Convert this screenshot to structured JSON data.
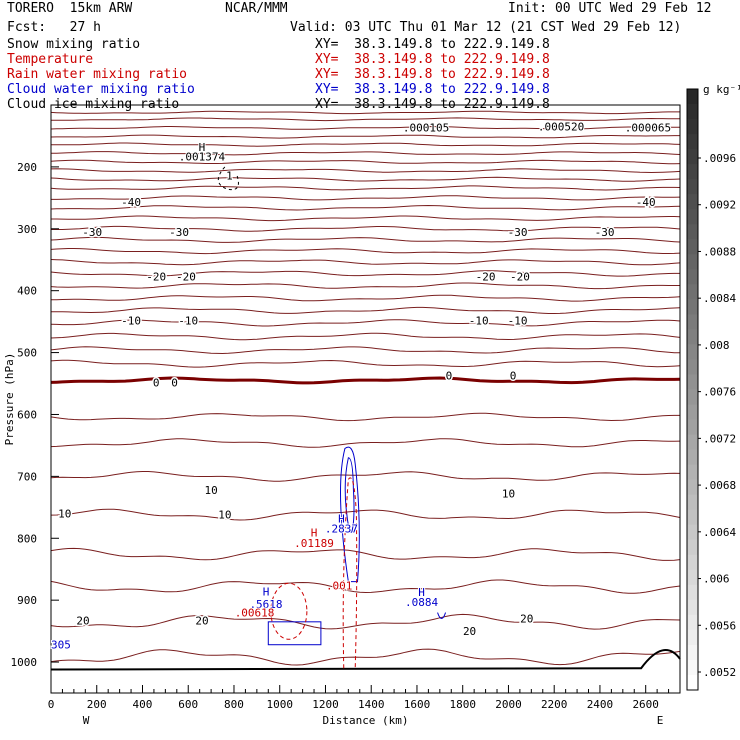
{
  "header": {
    "model": "TORERO  15km ARW",
    "org": "NCAR/MMM",
    "init": "Init: 00 UTC Wed 29 Feb 12",
    "fcst": "Fcst:   27 h",
    "valid": "Valid: 03 UTC Thu 01 Mar 12 (21 CST Wed 29 Feb 12)"
  },
  "legend": [
    {
      "name": "Snow mixing ratio",
      "xy": "XY=  38.3.149.8 to 222.9.149.8",
      "color": "#000000"
    },
    {
      "name": "Temperature",
      "xy": "XY=  38.3.149.8 to 222.9.149.8",
      "color": "#cc0000"
    },
    {
      "name": "Rain water mixing ratio",
      "xy": "XY=  38.3.149.8 to 222.9.149.8",
      "color": "#cc0000"
    },
    {
      "name": "Cloud water mixing ratio",
      "xy": "XY=  38.3.149.8 to 222.9.149.8",
      "color": "#0000cc"
    },
    {
      "name": "Cloud ice mixing ratio",
      "xy": "XY=  38.3.149.8 to 222.9.149.8",
      "color": "#000000"
    }
  ],
  "chart_data": {
    "type": "contour",
    "xlabel": "Distance (km)",
    "ylabel": "Pressure (hPa)",
    "xlim": [
      0,
      2750
    ],
    "ylim": [
      1050,
      100
    ],
    "x_ticks": [
      0,
      200,
      400,
      600,
      800,
      1000,
      1200,
      1400,
      1600,
      1800,
      2000,
      2200,
      2400,
      2600
    ],
    "y_ticks": [
      200,
      300,
      400,
      500,
      600,
      700,
      800,
      900,
      1000
    ],
    "y_tick_labels": [
      "200",
      "300",
      "400",
      "500",
      "600",
      "700",
      "800",
      "900",
      "1000"
    ],
    "x_end_labels": {
      "left": "W",
      "right": "E"
    },
    "colorbar": {
      "unit": "g kg⁻¹",
      "tick_labels": [
        ".0096",
        ".0092",
        ".0088",
        ".0084",
        ".008",
        ".0076",
        ".0072",
        ".0068",
        ".0064",
        ".006",
        ".0056",
        ".0052"
      ]
    },
    "temperature_labels": [
      {
        "text": "-40",
        "x": 350,
        "p": 257
      },
      {
        "text": "-40",
        "x": 2600,
        "p": 257
      },
      {
        "text": "-30",
        "x": 180,
        "p": 305
      },
      {
        "text": "-30",
        "x": 560,
        "p": 305
      },
      {
        "text": "-30",
        "x": 2040,
        "p": 305
      },
      {
        "text": "-30",
        "x": 2420,
        "p": 305
      },
      {
        "text": "-20",
        "x": 460,
        "p": 377
      },
      {
        "text": "-20",
        "x": 590,
        "p": 377
      },
      {
        "text": "-20",
        "x": 1900,
        "p": 377
      },
      {
        "text": "-20",
        "x": 2050,
        "p": 377
      },
      {
        "text": "-10",
        "x": 350,
        "p": 448
      },
      {
        "text": "-10",
        "x": 600,
        "p": 448
      },
      {
        "text": "-10",
        "x": 1870,
        "p": 448
      },
      {
        "text": "-10",
        "x": 2040,
        "p": 448
      },
      {
        "text": "0",
        "x": 460,
        "p": 548
      },
      {
        "text": "0",
        "x": 540,
        "p": 548
      },
      {
        "text": "0",
        "x": 1740,
        "p": 537
      },
      {
        "text": "0",
        "x": 2020,
        "p": 537
      },
      {
        "text": "10",
        "x": 700,
        "p": 722
      },
      {
        "text": "10",
        "x": 2000,
        "p": 728
      },
      {
        "text": "10",
        "x": 60,
        "p": 760
      },
      {
        "text": "10",
        "x": 760,
        "p": 762
      },
      {
        "text": "20",
        "x": 140,
        "p": 933
      },
      {
        "text": "20",
        "x": 660,
        "p": 933
      },
      {
        "text": "20",
        "x": 1830,
        "p": 950
      },
      {
        "text": "20",
        "x": 2080,
        "p": 930
      }
    ],
    "extrema_labels": [
      {
        "text": "H",
        "x": 660,
        "p": 168,
        "color": "#000000"
      },
      {
        "text": ".001374",
        "x": 660,
        "p": 183,
        "color": "#000000"
      },
      {
        "text": "1",
        "x": 780,
        "p": 214,
        "color": "#000000"
      },
      {
        "text": ".000105",
        "x": 1640,
        "p": 136,
        "color": "#000000"
      },
      {
        "text": ".000520",
        "x": 2230,
        "p": 135,
        "color": "#000000"
      },
      {
        "text": ".000065",
        "x": 2610,
        "p": 136,
        "color": "#000000"
      },
      {
        "text": "H",
        "x": 1270,
        "p": 768,
        "color": "#0000cc"
      },
      {
        "text": ".2837",
        "x": 1270,
        "p": 784,
        "color": "#0000cc"
      },
      {
        "text": "H",
        "x": 1150,
        "p": 791,
        "color": "#cc0000"
      },
      {
        "text": ".01189",
        "x": 1150,
        "p": 808,
        "color": "#cc0000"
      },
      {
        "text": ".001",
        "x": 1260,
        "p": 876,
        "color": "#cc0000"
      },
      {
        "text": "H",
        "x": 940,
        "p": 886,
        "color": "#0000cc"
      },
      {
        "text": ".5618",
        "x": 940,
        "p": 906,
        "color": "#0000cc"
      },
      {
        "text": ".00618",
        "x": 890,
        "p": 920,
        "color": "#cc0000"
      },
      {
        "text": "H",
        "x": 1620,
        "p": 887,
        "color": "#0000cc"
      },
      {
        "text": ".0884",
        "x": 1620,
        "p": 903,
        "color": "#0000cc"
      },
      {
        "text": "305",
        "x": 0,
        "p": 972,
        "color": "#0000cc"
      }
    ]
  }
}
